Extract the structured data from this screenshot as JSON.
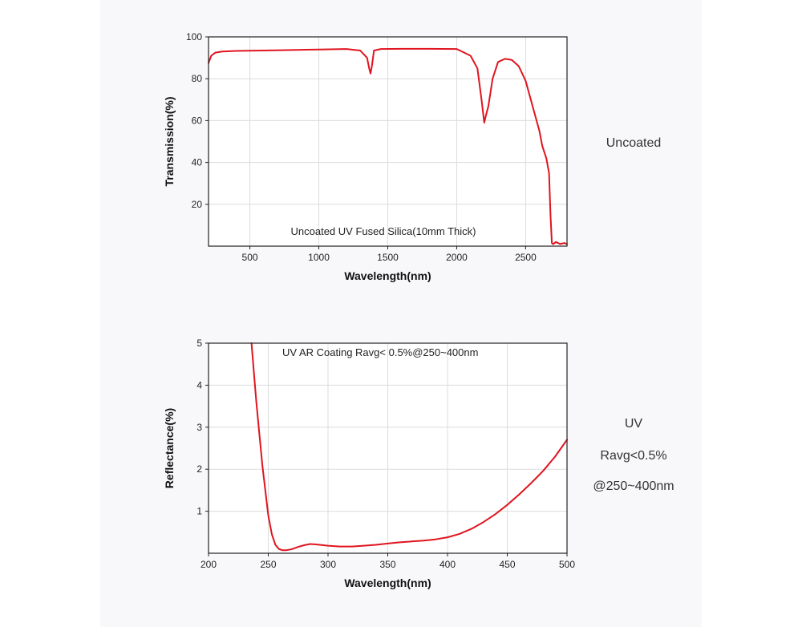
{
  "side_labels": {
    "top": "Uncoated",
    "bottom_line1": "UV",
    "bottom_line2": "Ravg<0.5%",
    "bottom_line3": "@250~400nm"
  },
  "chart_data": [
    {
      "type": "line",
      "title": "",
      "annotation": "Uncoated UV Fused Silica(10mm Thick)",
      "xlabel": "Wavelength(nm)",
      "ylabel": "Transmission(%)",
      "xlim": [
        200,
        2800
      ],
      "ylim": [
        0,
        100
      ],
      "xticks": [
        500,
        1000,
        1500,
        2000,
        2500
      ],
      "yticks": [
        20,
        40,
        60,
        80,
        100
      ],
      "grid": true,
      "line_color": "#e0141e",
      "series": [
        {
          "x": [
            200,
            220,
            250,
            300,
            400,
            600,
            800,
            1000,
            1200,
            1300,
            1350,
            1365,
            1375,
            1385,
            1400,
            1450,
            1600,
            1800,
            2000,
            2100,
            2150,
            2180,
            2200,
            2210,
            2230,
            2260,
            2300,
            2350,
            2400,
            2450,
            2500,
            2550,
            2600,
            2620,
            2650,
            2670,
            2680,
            2690,
            2700,
            2720,
            2750,
            2780,
            2800
          ],
          "y": [
            87.5,
            91,
            92.5,
            93,
            93.3,
            93.5,
            93.7,
            94,
            94.2,
            93.5,
            90,
            85,
            82.5,
            86,
            93.5,
            94.2,
            94.3,
            94.3,
            94.2,
            91,
            85,
            70,
            59,
            62,
            67,
            80,
            88,
            89.5,
            89,
            86,
            79,
            67,
            55,
            48,
            42,
            35,
            15,
            1.5,
            1,
            2,
            1,
            1.5,
            1
          ]
        }
      ]
    },
    {
      "type": "line",
      "title": "",
      "annotation": "UV AR Coating Ravg< 0.5%@250~400nm",
      "xlabel": "Wavelength(nm)",
      "ylabel": "Reflectance(%)",
      "xlim": [
        200,
        500
      ],
      "ylim": [
        0,
        5
      ],
      "xticks": [
        200,
        250,
        300,
        350,
        400,
        450,
        500
      ],
      "yticks": [
        1,
        2,
        3,
        4,
        5
      ],
      "grid": true,
      "line_color": "#e0141e",
      "series": [
        {
          "x": [
            236,
            240,
            245,
            250,
            253,
            256,
            259,
            262,
            265,
            270,
            275,
            280,
            285,
            290,
            300,
            310,
            320,
            330,
            340,
            350,
            360,
            370,
            380,
            390,
            400,
            410,
            420,
            430,
            440,
            450,
            460,
            470,
            480,
            490,
            500
          ],
          "y": [
            5,
            3.6,
            2.1,
            0.9,
            0.45,
            0.2,
            0.1,
            0.07,
            0.07,
            0.1,
            0.15,
            0.19,
            0.22,
            0.21,
            0.18,
            0.16,
            0.16,
            0.18,
            0.2,
            0.23,
            0.26,
            0.28,
            0.3,
            0.33,
            0.38,
            0.46,
            0.58,
            0.74,
            0.93,
            1.15,
            1.4,
            1.67,
            1.96,
            2.3,
            2.7
          ]
        }
      ]
    }
  ]
}
